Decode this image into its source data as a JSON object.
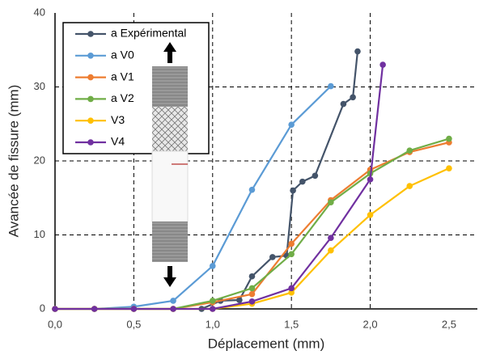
{
  "chart_data": {
    "type": "line",
    "x_label": "Déplacement (mm)",
    "y_label": "Avancée de fissure (mm)",
    "xlim": [
      0,
      2.68
    ],
    "ylim": [
      0,
      40
    ],
    "xticks": [
      {
        "value": 0,
        "label": "0,0"
      },
      {
        "value": 0.5,
        "label": "0,5"
      },
      {
        "value": 1,
        "label": "1,0"
      },
      {
        "value": 1.5,
        "label": "1,5"
      },
      {
        "value": 2,
        "label": "2,0"
      },
      {
        "value": 2.5,
        "label": "2,5"
      }
    ],
    "yticks": [
      0,
      10,
      20,
      30,
      40
    ],
    "grid": true,
    "legend": "upper left",
    "series": [
      {
        "name": "a Expérimental",
        "color": "#44546a",
        "x": [
          0.93,
          1.05,
          1.17,
          1.25,
          1.38,
          1.47,
          1.51,
          1.57,
          1.65,
          1.83,
          1.89,
          1.92
        ],
        "values": [
          0,
          1.1,
          1.2,
          4.4,
          7,
          7.2,
          16,
          17.2,
          18,
          27.7,
          28.6,
          34.8
        ]
      },
      {
        "name": "a V0",
        "color": "#5b9bd5",
        "x": [
          0,
          0.25,
          0.5,
          0.75,
          1,
          1.25,
          1.5,
          1.75
        ],
        "values": [
          0,
          0,
          0.3,
          1.1,
          5.8,
          16.1,
          24.9,
          30.1
        ]
      },
      {
        "name": "a V1",
        "color": "#ed7d31",
        "x": [
          0,
          0.25,
          0.5,
          0.75,
          1,
          1.25,
          1.5,
          1.75,
          2,
          2.25,
          2.5
        ],
        "values": [
          0,
          0,
          0,
          0,
          0.9,
          2,
          8.8,
          14.7,
          18.8,
          21.2,
          22.5
        ]
      },
      {
        "name": "a V2",
        "color": "#70ad47",
        "x": [
          0,
          0.25,
          0.5,
          0.75,
          1,
          1.25,
          1.5,
          1.75,
          2,
          2.25,
          2.5
        ],
        "values": [
          0,
          0,
          0,
          0,
          1.1,
          2.8,
          7.4,
          14.4,
          18.3,
          21.4,
          23
        ]
      },
      {
        "name": "V3",
        "color": "#ffc000",
        "x": [
          0,
          0.25,
          0.5,
          0.75,
          1,
          1.25,
          1.5,
          1.75,
          2,
          2.25,
          2.5
        ],
        "values": [
          0,
          0,
          0,
          0,
          0,
          0.7,
          2.2,
          7.9,
          12.7,
          16.6,
          19
        ]
      },
      {
        "name": "V4",
        "color": "#7030a0",
        "x": [
          0,
          0.25,
          0.5,
          0.75,
          1,
          1.25,
          1.5,
          1.75,
          2,
          2.08
        ],
        "values": [
          0,
          0,
          0,
          0,
          0,
          1,
          2.8,
          9.6,
          17.5,
          33
        ]
      }
    ]
  }
}
